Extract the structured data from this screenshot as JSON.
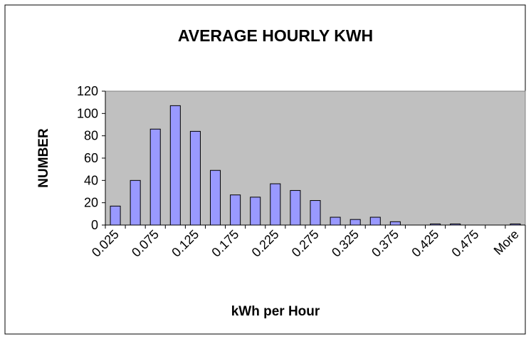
{
  "chart_data": {
    "type": "bar",
    "title": "AVERAGE HOURLY KWH",
    "x_label": "kWh per Hour",
    "y_label": "NUMBER",
    "categories": [
      "0.025",
      null,
      "0.075",
      null,
      "0.125",
      null,
      "0.175",
      null,
      "0.225",
      null,
      "0.275",
      null,
      "0.325",
      null,
      "0.375",
      null,
      "0.425",
      null,
      "0.475",
      null,
      "More"
    ],
    "values": [
      17,
      40,
      86,
      107,
      84,
      49,
      27,
      25,
      37,
      31,
      22,
      7,
      5,
      7,
      3,
      0,
      1,
      1,
      0,
      0,
      1
    ],
    "color": "#9999ff",
    "ylim": [
      0,
      120
    ],
    "yticks": [
      0,
      20,
      40,
      60,
      80,
      100,
      120
    ],
    "grid": false
  }
}
